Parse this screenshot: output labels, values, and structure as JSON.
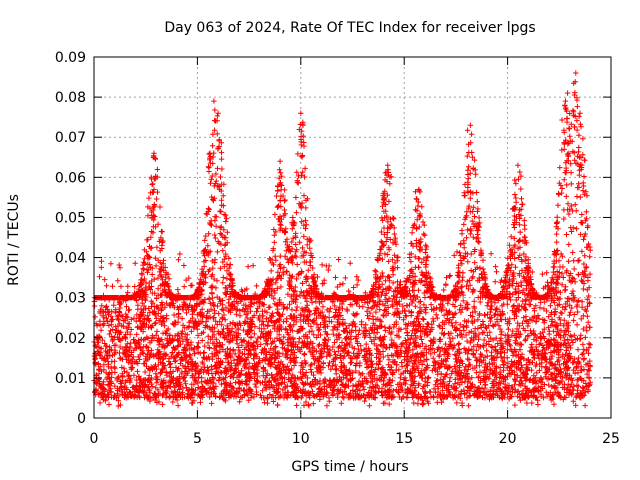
{
  "chart_data": {
    "type": "scatter",
    "title": "Day 063 of 2024, Rate Of TEC Index for receiver lpgs",
    "xlabel": "GPS time / hours",
    "ylabel": "ROTI / TECUs",
    "xlim": [
      0,
      25
    ],
    "ylim": [
      0,
      0.09
    ],
    "x_ticks": [
      0,
      5,
      10,
      15,
      20,
      25
    ],
    "x_tick_labels": [
      "0",
      "5",
      "10",
      "15",
      "20",
      "25"
    ],
    "y_ticks": [
      0,
      0.01,
      0.02,
      0.03,
      0.04,
      0.05,
      0.06,
      0.07,
      0.08,
      0.09
    ],
    "y_tick_labels": [
      "0",
      "0.01",
      "0.02",
      "0.03",
      "0.04",
      "0.05",
      "0.06",
      "0.07",
      "0.08",
      "0.09"
    ],
    "grid": true,
    "marker": "+",
    "marker_color": "#ff0000",
    "data_range_x": [
      0,
      24
    ],
    "bulk_y_range": [
      0.005,
      0.03
    ],
    "series": [
      {
        "name": "ROTI",
        "note": "dense cloud of points over 0-24 h; bulk 0.005-0.03, notable peaks listed",
        "peaks": [
          {
            "x": 2.9,
            "y": 0.066
          },
          {
            "x": 5.8,
            "y": 0.079
          },
          {
            "x": 6.0,
            "y": 0.076
          },
          {
            "x": 9.0,
            "y": 0.064
          },
          {
            "x": 10.0,
            "y": 0.076
          },
          {
            "x": 14.2,
            "y": 0.063
          },
          {
            "x": 15.7,
            "y": 0.057
          },
          {
            "x": 18.2,
            "y": 0.073
          },
          {
            "x": 18.3,
            "y": 0.065
          },
          {
            "x": 20.5,
            "y": 0.063
          },
          {
            "x": 22.8,
            "y": 0.079
          },
          {
            "x": 22.9,
            "y": 0.081
          },
          {
            "x": 23.3,
            "y": 0.086
          },
          {
            "x": 23.5,
            "y": 0.076
          }
        ]
      }
    ]
  }
}
